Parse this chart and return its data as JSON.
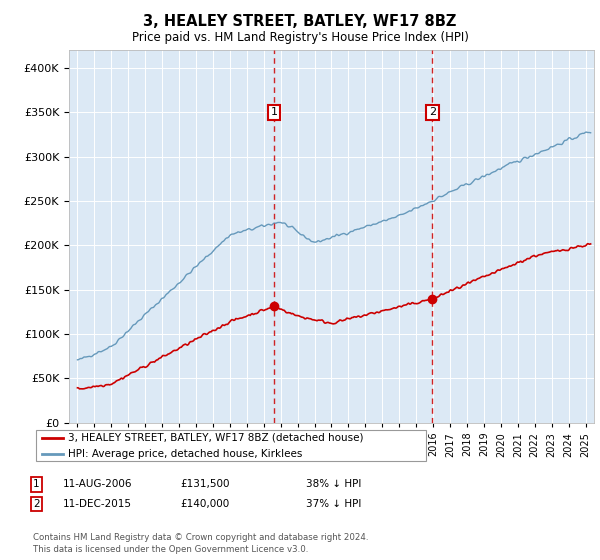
{
  "title": "3, HEALEY STREET, BATLEY, WF17 8BZ",
  "subtitle": "Price paid vs. HM Land Registry's House Price Index (HPI)",
  "legend_line1": "3, HEALEY STREET, BATLEY, WF17 8BZ (detached house)",
  "legend_line2": "HPI: Average price, detached house, Kirklees",
  "footnote": "Contains HM Land Registry data © Crown copyright and database right 2024.\nThis data is licensed under the Open Government Licence v3.0.",
  "sale1_date": "11-AUG-2006",
  "sale1_price": 131500,
  "sale1_label": "38% ↓ HPI",
  "sale1_year": 2006.6,
  "sale2_date": "11-DEC-2015",
  "sale2_price": 140000,
  "sale2_label": "37% ↓ HPI",
  "sale2_year": 2015.95,
  "ylim": [
    0,
    420000
  ],
  "xlim_start": 1994.5,
  "xlim_end": 2025.5,
  "plot_bg_color": "#dce9f5",
  "red_color": "#cc0000",
  "blue_color": "#6699bb",
  "grid_color": "#ffffff"
}
